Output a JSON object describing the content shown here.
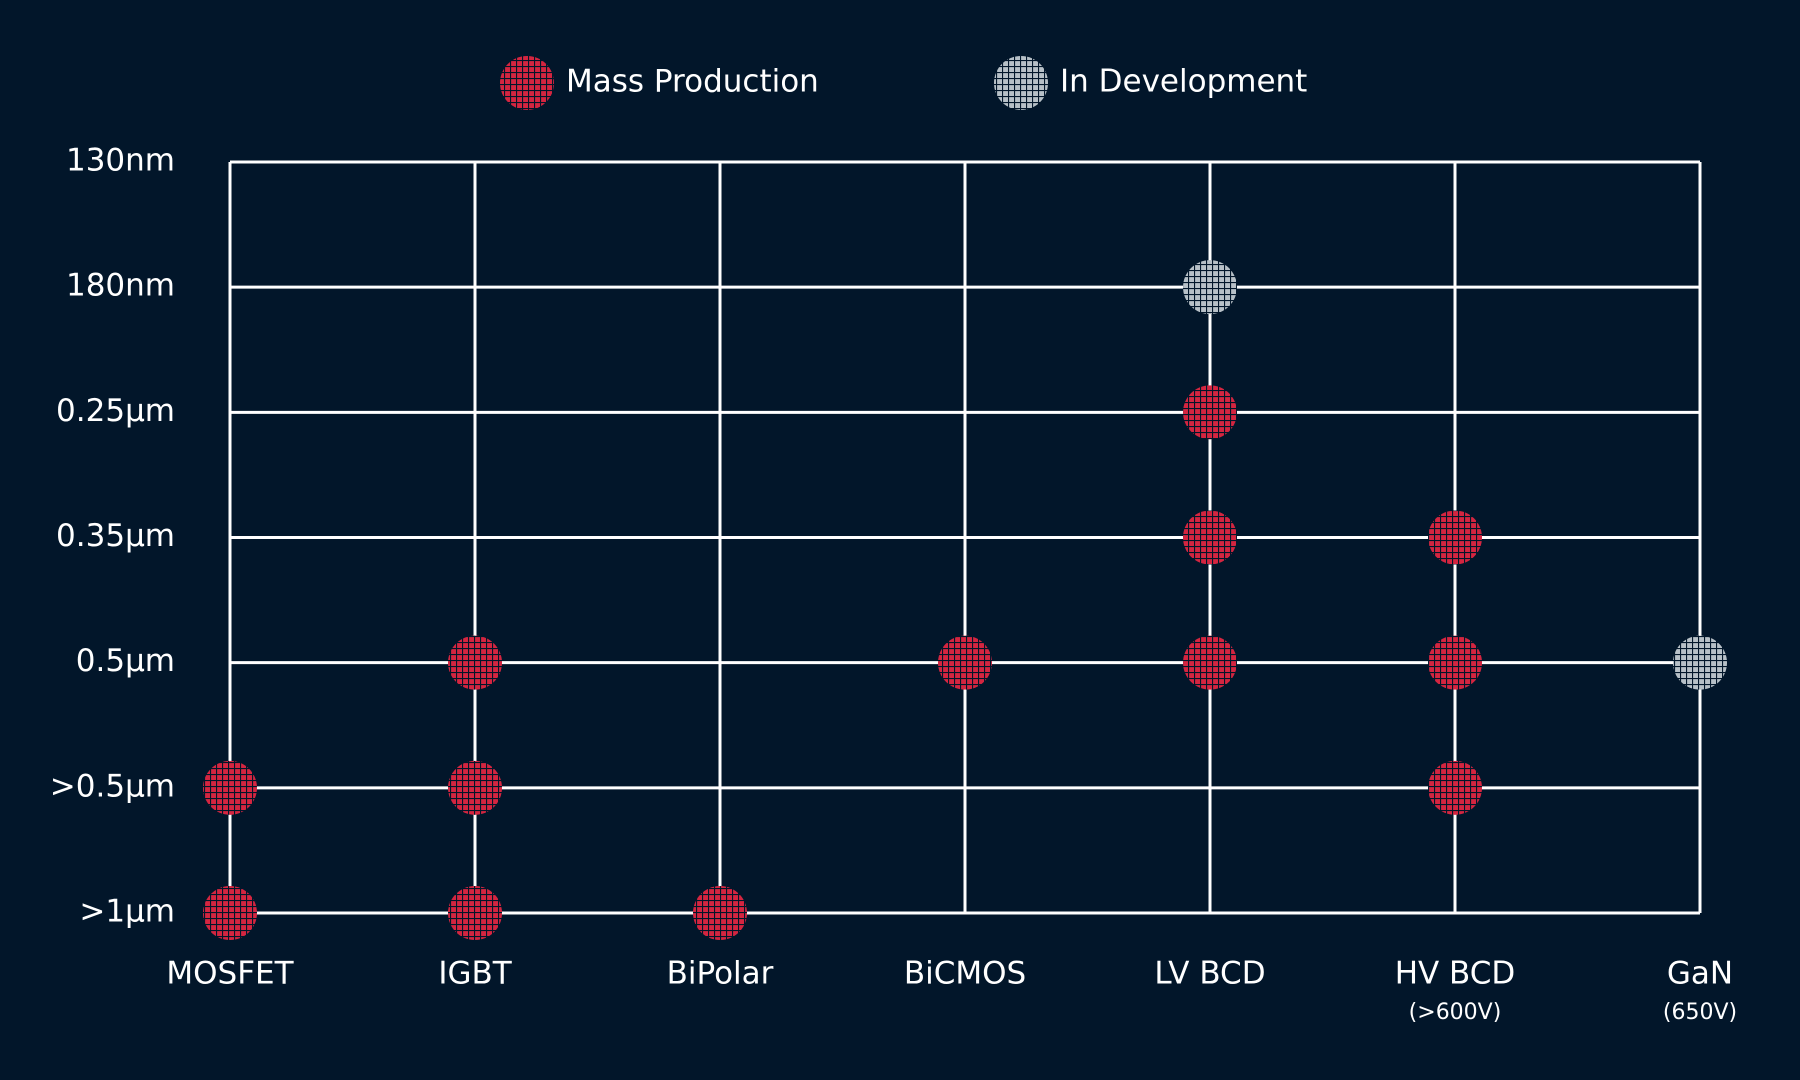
{
  "chart_data": {
    "type": "scatter",
    "x_categories": [
      "MOSFET",
      "IGBT",
      "BiPolar",
      "BiCMOS",
      "LV BCD",
      "HV BCD",
      "GaN"
    ],
    "x_category_notes": [
      null,
      null,
      null,
      null,
      null,
      "(>600V)",
      "(650V)"
    ],
    "y_categories": [
      ">1μm",
      ">0.5μm",
      "0.5μm",
      "0.35μm",
      "0.25μm",
      "180nm",
      "130nm"
    ],
    "grid": true,
    "series": [
      {
        "name": "Mass Production",
        "color": "#d42540",
        "points": [
          {
            "x": "MOSFET",
            "y": ">0.5μm"
          },
          {
            "x": "MOSFET",
            "y": ">1μm"
          },
          {
            "x": "IGBT",
            "y": "0.5μm"
          },
          {
            "x": "IGBT",
            "y": ">0.5μm"
          },
          {
            "x": "IGBT",
            "y": ">1μm"
          },
          {
            "x": "BiPolar",
            "y": ">1μm"
          },
          {
            "x": "BiCMOS",
            "y": "0.5μm"
          },
          {
            "x": "LV BCD",
            "y": "0.25μm"
          },
          {
            "x": "LV BCD",
            "y": "0.35μm"
          },
          {
            "x": "LV BCD",
            "y": "0.5μm"
          },
          {
            "x": "HV BCD",
            "y": "0.35μm"
          },
          {
            "x": "HV BCD",
            "y": "0.5μm"
          },
          {
            "x": "HV BCD",
            "y": ">0.5μm"
          }
        ]
      },
      {
        "name": "In Development",
        "color": "#b7c0c7",
        "points": [
          {
            "x": "LV BCD",
            "y": "180nm"
          },
          {
            "x": "GaN",
            "y": "0.5μm"
          }
        ]
      }
    ]
  }
}
